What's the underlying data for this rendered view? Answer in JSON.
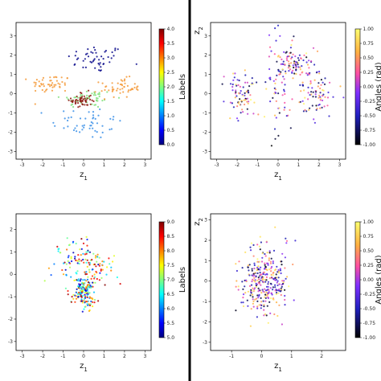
{
  "chart_data": [
    {
      "type": "scatter",
      "panel": "top-left",
      "xlabel": "z1",
      "ylabel": "",
      "xlim": [
        -3.3,
        3.3
      ],
      "ylim": [
        -3.4,
        3.7
      ],
      "xticks": [
        "-3",
        "-2",
        "-1",
        "0",
        "1",
        "2",
        "3"
      ],
      "yticks": [
        "-3",
        "-2",
        "-1",
        "0",
        "1",
        "2",
        "3"
      ],
      "colorbar": {
        "label": "Labels",
        "colormap": "jet",
        "range": [
          0.0,
          4.0
        ],
        "ticks": [
          "0.0",
          "0.5",
          "1.0",
          "1.5",
          "2.0",
          "2.5",
          "3.0",
          "3.5",
          "4.0"
        ]
      },
      "series": [
        {
          "cluster": "0.0",
          "color": "#0a0a8c",
          "center": [
            0.6,
            1.8
          ],
          "spread": [
            1.3,
            0.65
          ]
        },
        {
          "cluster": "1.0",
          "color": "#3a8fe8",
          "center": [
            0.2,
            -1.5
          ],
          "spread": [
            1.6,
            0.8
          ]
        },
        {
          "cluster": "2.0",
          "color": "#7ee07a",
          "center": [
            0.2,
            -0.25
          ],
          "spread": [
            1.2,
            0.45
          ]
        },
        {
          "cluster": "3.0",
          "color": "#f59a3a",
          "center": [
            -1.6,
            0.5
          ],
          "spread": [
            0.9,
            0.45
          ]
        },
        {
          "cluster": "3.0",
          "color": "#f59a3a",
          "center": [
            1.8,
            0.3
          ],
          "spread": [
            0.9,
            0.45
          ]
        },
        {
          "cluster": "4.0",
          "color": "#8c1a10",
          "center": [
            -0.1,
            -0.35
          ],
          "spread": [
            0.45,
            0.4
          ]
        }
      ]
    },
    {
      "type": "scatter",
      "panel": "top-right",
      "xlabel": "z1",
      "ylabel": "z2",
      "xlim": [
        -3.3,
        3.3
      ],
      "ylim": [
        -3.4,
        3.7
      ],
      "xticks": [
        "-3",
        "-2",
        "-1",
        "0",
        "1",
        "2",
        "3"
      ],
      "yticks": [
        "-3",
        "-2",
        "-1",
        "0",
        "1",
        "2",
        "3"
      ],
      "colorbar": {
        "label": "Angles (rad)",
        "colormap": "gnuplot2",
        "range": [
          -1.0,
          1.0
        ],
        "ticks": [
          "1.00",
          "0.75",
          "0.50",
          "0.25",
          "0.00",
          "-0.25",
          "-0.50",
          "-0.75",
          "-1.00"
        ]
      },
      "series": [
        {
          "cluster": "blob",
          "center": [
            -1.7,
            0.0
          ],
          "spread": [
            0.6,
            1.1
          ]
        },
        {
          "cluster": "blob",
          "center": [
            0.0,
            0.5
          ],
          "spread": [
            0.7,
            2.5
          ]
        },
        {
          "cluster": "blob",
          "center": [
            1.8,
            0.0
          ],
          "spread": [
            0.8,
            1.0
          ]
        },
        {
          "cluster": "blob",
          "center": [
            0.9,
            1.5
          ],
          "spread": [
            0.6,
            0.8
          ]
        }
      ]
    },
    {
      "type": "scatter",
      "panel": "bottom-left",
      "xlabel": "z1",
      "ylabel": "",
      "xlim": [
        -3.3,
        3.3
      ],
      "ylim": [
        -3.4,
        2.7
      ],
      "xticks": [
        "-3",
        "-2",
        "-1",
        "0",
        "1",
        "2",
        "3"
      ],
      "yticks": [
        "-3",
        "-2",
        "-1",
        "0",
        "1",
        "2"
      ],
      "colorbar": {
        "label": "Labels",
        "colormap": "jet",
        "range": [
          5.0,
          9.0
        ],
        "ticks": [
          "5.0",
          "5.5",
          "6.0",
          "6.5",
          "7.0",
          "7.5",
          "8.0",
          "8.5",
          "9.0"
        ]
      },
      "series": [
        {
          "cluster": "mixed",
          "center": [
            0.0,
            0.4
          ],
          "spread": [
            1.4,
            1.1
          ]
        },
        {
          "cluster": "8-9",
          "center": [
            0.0,
            -0.8
          ],
          "spread": [
            0.5,
            0.6
          ]
        }
      ]
    },
    {
      "type": "scatter",
      "panel": "bottom-right",
      "xlabel": "z1",
      "ylabel": "z2",
      "xlim": [
        -1.7,
        2.8
      ],
      "ylim": [
        -3.4,
        3.3
      ],
      "xticks": [
        "-1",
        "0",
        "1",
        "2"
      ],
      "yticks": [
        "-3",
        "-2",
        "-1",
        "0",
        "1",
        "2",
        "3"
      ],
      "colorbar": {
        "label": "Angles (rad)",
        "colormap": "gnuplot2",
        "range": [
          -1.0,
          1.0
        ],
        "ticks": [
          "1.00",
          "0.75",
          "0.50",
          "0.25",
          "0.00",
          "-0.25",
          "-0.50",
          "-0.75",
          "-1.00"
        ]
      },
      "series": [
        {
          "cluster": "block",
          "center": [
            0.1,
            0.0
          ],
          "spread": [
            0.75,
            1.5
          ]
        }
      ]
    }
  ]
}
